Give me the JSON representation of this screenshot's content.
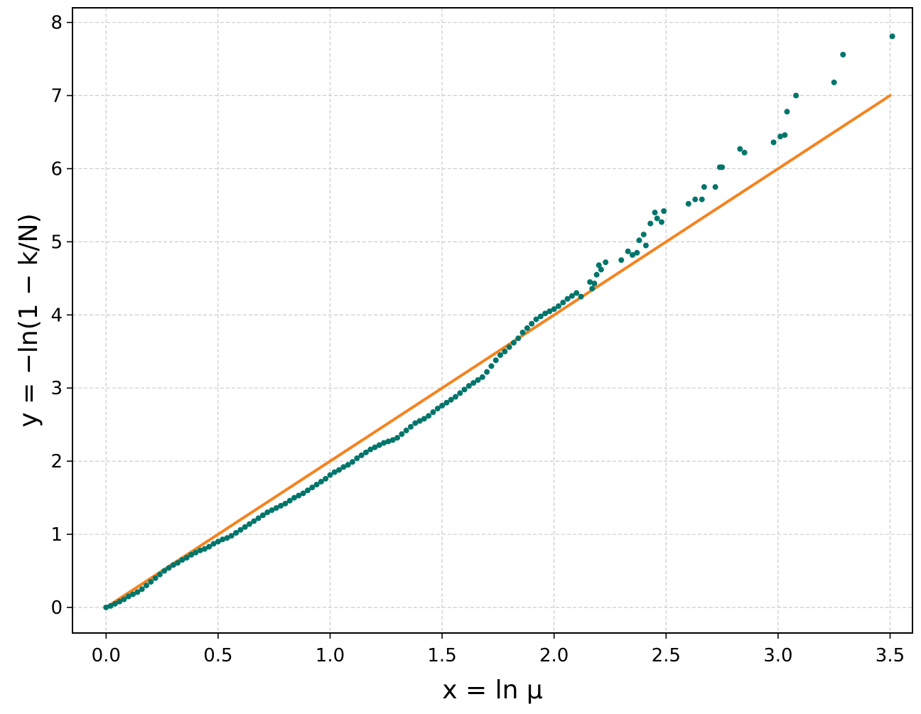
{
  "chart_data": {
    "type": "scatter",
    "title": "",
    "xlabel": "x = ln μ",
    "ylabel": "y = −ln(1 − k/N)",
    "xlim": [
      -0.15,
      3.6
    ],
    "ylim": [
      -0.35,
      8.2
    ],
    "x_ticks": [
      0.0,
      0.5,
      1.0,
      1.5,
      2.0,
      2.5,
      3.0,
      3.5
    ],
    "x_tick_labels": [
      "0.0",
      "0.5",
      "1.0",
      "1.5",
      "2.0",
      "2.5",
      "3.0",
      "3.5"
    ],
    "y_ticks": [
      0,
      1,
      2,
      3,
      4,
      5,
      6,
      7,
      8
    ],
    "y_tick_labels": [
      "0",
      "1",
      "2",
      "3",
      "4",
      "5",
      "6",
      "7",
      "8"
    ],
    "grid": true,
    "colors": {
      "scatter": "#00756b",
      "line": "#f5831f"
    },
    "series": [
      {
        "kind": "line",
        "points": [
          [
            0.0,
            0.0
          ],
          [
            3.5,
            7.0
          ]
        ]
      },
      {
        "kind": "scatter",
        "points": [
          [
            0.0,
            0.0
          ],
          [
            0.02,
            0.02
          ],
          [
            0.04,
            0.05
          ],
          [
            0.06,
            0.08
          ],
          [
            0.08,
            0.11
          ],
          [
            0.1,
            0.15
          ],
          [
            0.12,
            0.18
          ],
          [
            0.14,
            0.21
          ],
          [
            0.16,
            0.25
          ],
          [
            0.18,
            0.3
          ],
          [
            0.2,
            0.35
          ],
          [
            0.22,
            0.4
          ],
          [
            0.24,
            0.45
          ],
          [
            0.26,
            0.5
          ],
          [
            0.28,
            0.54
          ],
          [
            0.3,
            0.58
          ],
          [
            0.32,
            0.61
          ],
          [
            0.34,
            0.65
          ],
          [
            0.36,
            0.68
          ],
          [
            0.38,
            0.72
          ],
          [
            0.4,
            0.75
          ],
          [
            0.42,
            0.78
          ],
          [
            0.44,
            0.8
          ],
          [
            0.46,
            0.83
          ],
          [
            0.48,
            0.87
          ],
          [
            0.5,
            0.9
          ],
          [
            0.52,
            0.93
          ],
          [
            0.54,
            0.95
          ],
          [
            0.56,
            0.98
          ],
          [
            0.58,
            1.02
          ],
          [
            0.6,
            1.06
          ],
          [
            0.62,
            1.1
          ],
          [
            0.64,
            1.14
          ],
          [
            0.66,
            1.18
          ],
          [
            0.68,
            1.22
          ],
          [
            0.7,
            1.26
          ],
          [
            0.72,
            1.3
          ],
          [
            0.74,
            1.33
          ],
          [
            0.76,
            1.36
          ],
          [
            0.78,
            1.39
          ],
          [
            0.8,
            1.42
          ],
          [
            0.82,
            1.46
          ],
          [
            0.84,
            1.5
          ],
          [
            0.86,
            1.53
          ],
          [
            0.88,
            1.56
          ],
          [
            0.9,
            1.6
          ],
          [
            0.92,
            1.64
          ],
          [
            0.94,
            1.68
          ],
          [
            0.96,
            1.72
          ],
          [
            0.98,
            1.76
          ],
          [
            1.0,
            1.81
          ],
          [
            1.02,
            1.85
          ],
          [
            1.04,
            1.88
          ],
          [
            1.06,
            1.92
          ],
          [
            1.08,
            1.95
          ],
          [
            1.1,
            1.99
          ],
          [
            1.12,
            2.04
          ],
          [
            1.14,
            2.08
          ],
          [
            1.16,
            2.12
          ],
          [
            1.18,
            2.16
          ],
          [
            1.2,
            2.19
          ],
          [
            1.22,
            2.22
          ],
          [
            1.24,
            2.25
          ],
          [
            1.26,
            2.27
          ],
          [
            1.28,
            2.29
          ],
          [
            1.3,
            2.32
          ],
          [
            1.32,
            2.37
          ],
          [
            1.34,
            2.42
          ],
          [
            1.36,
            2.47
          ],
          [
            1.38,
            2.52
          ],
          [
            1.4,
            2.55
          ],
          [
            1.42,
            2.58
          ],
          [
            1.44,
            2.62
          ],
          [
            1.46,
            2.67
          ],
          [
            1.48,
            2.72
          ],
          [
            1.5,
            2.76
          ],
          [
            1.52,
            2.8
          ],
          [
            1.54,
            2.84
          ],
          [
            1.56,
            2.88
          ],
          [
            1.58,
            2.93
          ],
          [
            1.6,
            2.98
          ],
          [
            1.62,
            3.03
          ],
          [
            1.64,
            3.07
          ],
          [
            1.66,
            3.11
          ],
          [
            1.68,
            3.15
          ],
          [
            1.7,
            3.22
          ],
          [
            1.72,
            3.3
          ],
          [
            1.74,
            3.38
          ],
          [
            1.76,
            3.45
          ],
          [
            1.78,
            3.5
          ],
          [
            1.8,
            3.56
          ],
          [
            1.82,
            3.62
          ],
          [
            1.84,
            3.68
          ],
          [
            1.86,
            3.76
          ],
          [
            1.88,
            3.82
          ],
          [
            1.9,
            3.88
          ],
          [
            1.92,
            3.94
          ],
          [
            1.94,
            3.98
          ],
          [
            1.96,
            4.02
          ],
          [
            1.98,
            4.05
          ],
          [
            2.0,
            4.08
          ],
          [
            2.02,
            4.12
          ],
          [
            2.04,
            4.17
          ],
          [
            2.06,
            4.22
          ],
          [
            2.08,
            4.26
          ],
          [
            2.1,
            4.3
          ],
          [
            2.12,
            4.25
          ],
          [
            2.16,
            4.45
          ],
          [
            2.17,
            4.36
          ],
          [
            2.18,
            4.43
          ],
          [
            2.19,
            4.55
          ],
          [
            2.2,
            4.68
          ],
          [
            2.21,
            4.62
          ],
          [
            2.23,
            4.72
          ],
          [
            2.3,
            4.75
          ],
          [
            2.33,
            4.87
          ],
          [
            2.35,
            4.82
          ],
          [
            2.37,
            4.85
          ],
          [
            2.38,
            5.02
          ],
          [
            2.4,
            5.1
          ],
          [
            2.41,
            4.95
          ],
          [
            2.43,
            5.25
          ],
          [
            2.45,
            5.4
          ],
          [
            2.46,
            5.32
          ],
          [
            2.48,
            5.27
          ],
          [
            2.49,
            5.42
          ],
          [
            2.6,
            5.52
          ],
          [
            2.63,
            5.58
          ],
          [
            2.66,
            5.58
          ],
          [
            2.67,
            5.75
          ],
          [
            2.72,
            5.75
          ],
          [
            2.74,
            6.02
          ],
          [
            2.75,
            6.02
          ],
          [
            2.83,
            6.27
          ],
          [
            2.85,
            6.22
          ],
          [
            2.98,
            6.36
          ],
          [
            3.01,
            6.44
          ],
          [
            3.03,
            6.46
          ],
          [
            3.04,
            6.78
          ],
          [
            3.08,
            7.0
          ],
          [
            3.25,
            7.18
          ],
          [
            3.29,
            7.56
          ],
          [
            3.51,
            7.81
          ]
        ]
      }
    ]
  }
}
